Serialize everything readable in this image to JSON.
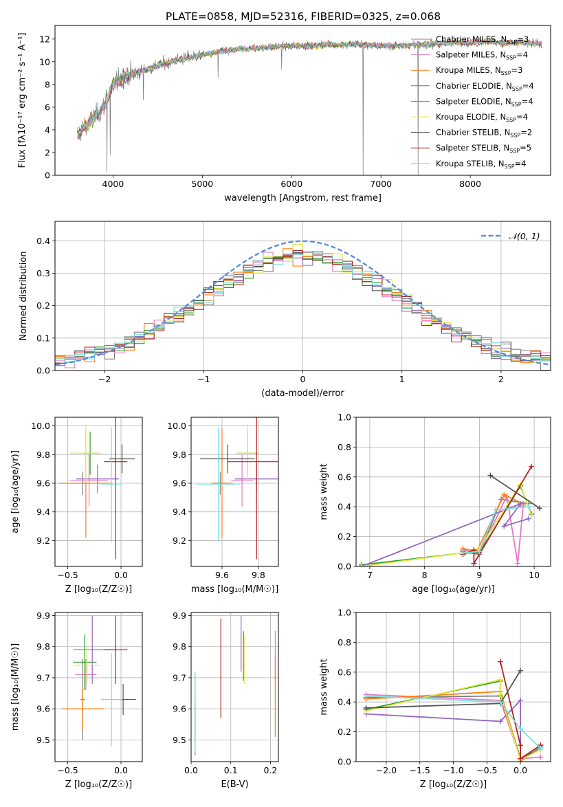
{
  "figure": {
    "title": "PLATE=0858, MJD=52316, FIBERID=0325, z=0.068"
  },
  "models": [
    {
      "name": "Chabrier MILES",
      "nssp": "3",
      "color": "#808080"
    },
    {
      "name": "Salpeter MILES",
      "nssp": "4",
      "color": "#e377c2"
    },
    {
      "name": "Kroupa MILES",
      "nssp": "3",
      "color": "#ff7f0e"
    },
    {
      "name": "Chabrier ELODIE",
      "nssp": "4",
      "color": "#2ca02c"
    },
    {
      "name": "Salpeter ELODIE",
      "nssp": "4",
      "color": "#9467bd"
    },
    {
      "name": "Kroupa ELODIE",
      "nssp": "4",
      "color": "#e8e84a"
    },
    {
      "name": "Chabrier STELIB",
      "nssp": "2",
      "color": "#555555"
    },
    {
      "name": "Salpeter STELIB",
      "nssp": "5",
      "color": "#b22222"
    },
    {
      "name": "Kroupa STELIB",
      "nssp": "4",
      "color": "#7fdcdc"
    }
  ],
  "chart_data": [
    {
      "id": "spectrum",
      "type": "line",
      "xlabel": "wavelength [Angstrom, rest frame]",
      "ylabel": "Flux [fλ10⁻¹⁷ erg cm⁻² s⁻¹ A⁻¹]",
      "xlim": [
        3350,
        8900
      ],
      "ylim": [
        0,
        13.2
      ],
      "xticks": [
        4000,
        5000,
        6000,
        7000,
        8000
      ],
      "yticks": [
        0,
        2,
        4,
        6,
        8,
        10,
        12
      ],
      "continuum": {
        "x": [
          3600,
          3700,
          3800,
          3900,
          4000,
          4100,
          4200,
          4300,
          4400,
          4600,
          4800,
          5000,
          5200,
          5400,
          5600,
          5800,
          6000,
          6200,
          6400,
          6600,
          6800,
          7000,
          7200,
          7400,
          7600,
          7800,
          8000,
          8200,
          8400,
          8600,
          8800
        ],
        "y": [
          3.6,
          4.4,
          5.2,
          6.0,
          8.0,
          8.6,
          8.9,
          9.1,
          9.4,
          9.9,
          10.3,
          10.6,
          10.9,
          11.1,
          11.2,
          11.3,
          11.4,
          11.4,
          11.5,
          11.5,
          11.5,
          11.4,
          11.4,
          11.5,
          11.6,
          11.7,
          11.7,
          11.8,
          11.6,
          11.7,
          11.6
        ]
      },
      "absorption_lines": [
        {
          "x": 3934,
          "y": 0.3
        },
        {
          "x": 3969,
          "y": 1.8
        },
        {
          "x": 4340,
          "y": 6.6
        },
        {
          "x": 5176,
          "y": 8.6
        },
        {
          "x": 5890,
          "y": 9.3
        },
        {
          "x": 6800,
          "y": 0.0
        },
        {
          "x": 7415,
          "y": 0.0
        }
      ]
    },
    {
      "id": "residuals",
      "type": "step",
      "xlabel": "(data-model)/error",
      "ylabel": "Normed distribution",
      "xlim": [
        -2.5,
        2.5
      ],
      "ylim": [
        0,
        0.46
      ],
      "xticks": [
        -2,
        -1,
        0,
        1,
        2
      ],
      "xticklabels": [
        "−2",
        "−1",
        "0",
        "1",
        "2"
      ],
      "yticks": [
        0.0,
        0.1,
        0.2,
        0.3,
        0.4
      ],
      "yticklabels": [
        "0.0",
        "0.1",
        "0.2",
        "0.3",
        "0.4"
      ],
      "gaussian_label": "𝒩(0, 1)",
      "gaussian_color": "#5a8fd6",
      "bins": 50
    },
    {
      "id": "age_vs_z",
      "type": "errorbar",
      "xlabel": "Z [log₁₀(Z/Z☉)]",
      "ylabel": "age  [log₁₀(age/yr)]",
      "xlim": [
        -0.62,
        0.2
      ],
      "ylim": [
        9.02,
        10.06
      ],
      "xticks": [
        -0.5,
        0.0
      ],
      "xticklabels": [
        "−0.5",
        "0.0"
      ],
      "yticks": [
        9.2,
        9.4,
        9.6,
        9.8,
        10.0
      ],
      "yticklabels": [
        "9.2",
        "9.4",
        "9.6",
        "9.8",
        "10.0"
      ],
      "points": [
        {
          "model": 0,
          "x": -0.36,
          "xerr": 0.02,
          "y": 9.6,
          "yerr": 0.08
        },
        {
          "model": 1,
          "x": -0.3,
          "xerr": 0.18,
          "y": 9.62,
          "yerr": 0.18
        },
        {
          "model": 2,
          "x": -0.33,
          "xerr": 0.25,
          "y": 9.6,
          "yerr": 0.38
        },
        {
          "model": 3,
          "x": -0.29,
          "xerr": 0.07,
          "y": 9.81,
          "yerr": 0.15
        },
        {
          "model": 4,
          "x": -0.22,
          "xerr": 0.2,
          "y": 9.63,
          "yerr": 0.1
        },
        {
          "model": 5,
          "x": -0.33,
          "xerr": 0.15,
          "y": 9.81,
          "yerr": 0.2
        },
        {
          "model": 6,
          "x": 0.01,
          "xerr": 0.12,
          "y": 9.77,
          "yerr": 0.1
        },
        {
          "model": 7,
          "x": -0.05,
          "xerr": 0.11,
          "y": 9.75,
          "yerr": 0.68
        },
        {
          "model": 8,
          "x": -0.09,
          "xerr": 0.1,
          "y": 9.59,
          "yerr": 0.4
        }
      ]
    },
    {
      "id": "age_vs_mass",
      "type": "errorbar",
      "xlabel": "mass [log₁₀(M/M☉)]",
      "ylabel": "",
      "xlim": [
        9.43,
        9.91
      ],
      "ylim": [
        9.02,
        10.06
      ],
      "xticks": [
        9.6,
        9.8
      ],
      "xticklabels": [
        "9.6",
        "9.8"
      ],
      "yticks": [
        9.2,
        9.4,
        9.6,
        9.8,
        10.0
      ],
      "yticklabels": [
        "9.2",
        "9.4",
        "9.6",
        "9.8",
        "10.0"
      ],
      "points": [
        {
          "model": 0,
          "x": 9.59,
          "xerr": 0.04,
          "y": 9.6,
          "yerr": 0.08
        },
        {
          "model": 1,
          "x": 9.71,
          "xerr": 0.06,
          "y": 9.62,
          "yerr": 0.18
        },
        {
          "model": 2,
          "x": 9.6,
          "xerr": 0.06,
          "y": 9.6,
          "yerr": 0.38
        },
        {
          "model": 3,
          "x": 9.74,
          "xerr": 0.06,
          "y": 9.81,
          "yerr": 0.15
        },
        {
          "model": 4,
          "x": 9.79,
          "xerr": 0.12,
          "y": 9.63,
          "yerr": 0.1
        },
        {
          "model": 5,
          "x": 9.74,
          "xerr": 0.06,
          "y": 9.81,
          "yerr": 0.2
        },
        {
          "model": 6,
          "x": 9.63,
          "xerr": 0.15,
          "y": 9.77,
          "yerr": 0.1
        },
        {
          "model": 7,
          "x": 9.79,
          "xerr": 0.16,
          "y": 9.75,
          "yerr": 0.68
        },
        {
          "model": 8,
          "x": 9.58,
          "xerr": 0.12,
          "y": 9.59,
          "yerr": 0.4
        }
      ]
    },
    {
      "id": "weight_vs_age",
      "type": "line",
      "xlabel": "age  [log₁₀(age/yr)]",
      "ylabel": "mass weight",
      "xlim": [
        6.75,
        10.3
      ],
      "ylim": [
        0,
        1
      ],
      "xticks": [
        7,
        8,
        9,
        10
      ],
      "xticklabels": [
        "7",
        "8",
        "9",
        "10"
      ],
      "yticks": [
        0.0,
        0.2,
        0.4,
        0.6,
        0.8,
        1.0
      ],
      "yticklabels": [
        "0.0",
        "0.2",
        "0.4",
        "0.6",
        "0.8",
        "1.0"
      ],
      "series": [
        {
          "model": 0,
          "x": [
            8.7,
            9.0,
            9.4,
            9.9
          ],
          "y": [
            0.1,
            0.08,
            0.45,
            0.42
          ]
        },
        {
          "model": 1,
          "x": [
            8.7,
            9.0,
            9.5,
            9.7,
            9.8
          ],
          "y": [
            0.11,
            0.09,
            0.47,
            0.02,
            0.41
          ]
        },
        {
          "model": 2,
          "x": [
            8.7,
            8.95,
            9.45,
            9.8
          ],
          "y": [
            0.12,
            0.1,
            0.48,
            0.42
          ]
        },
        {
          "model": 3,
          "x": [
            6.85,
            8.7,
            9.0,
            9.75,
            9.95
          ],
          "y": [
            0.01,
            0.09,
            0.09,
            0.54,
            0.35
          ]
        },
        {
          "model": 4,
          "x": [
            6.85,
            9.75,
            9.45,
            9.9
          ],
          "y": [
            0.0,
            0.42,
            0.27,
            0.32
          ]
        },
        {
          "model": 5,
          "x": [
            6.85,
            8.7,
            9.0,
            9.75,
            9.95
          ],
          "y": [
            0.0,
            0.09,
            0.12,
            0.55,
            0.34
          ]
        },
        {
          "model": 6,
          "x": [
            9.2,
            10.1
          ],
          "y": [
            0.61,
            0.39
          ]
        },
        {
          "model": 7,
          "x": [
            8.7,
            8.9,
            8.9,
            9.95
          ],
          "y": [
            0.08,
            0.11,
            0.02,
            0.67
          ]
        },
        {
          "model": 8,
          "x": [
            8.7,
            9.0,
            9.3,
            9.9
          ],
          "y": [
            0.09,
            0.1,
            0.38,
            0.4
          ]
        }
      ]
    },
    {
      "id": "mass_vs_z",
      "type": "errorbar",
      "xlabel": "Z [log₁₀(Z/Z☉)]",
      "ylabel": "mass [log₁₀(M/M☉)]",
      "xlim": [
        -0.62,
        0.2
      ],
      "ylim": [
        9.43,
        9.91
      ],
      "xticks": [
        -0.5,
        0.0
      ],
      "xticklabels": [
        "−0.5",
        "0.0"
      ],
      "yticks": [
        9.5,
        9.6,
        9.7,
        9.8,
        9.9
      ],
      "yticklabels": [
        "9.5",
        "9.6",
        "9.7",
        "9.8",
        "9.9"
      ],
      "points": [
        {
          "model": 0,
          "x": -0.36,
          "xerr": 0.02,
          "y": 9.63,
          "yerr": 0.13
        },
        {
          "model": 1,
          "x": -0.33,
          "xerr": 0.1,
          "y": 9.71,
          "yerr": 0.05
        },
        {
          "model": 2,
          "x": -0.36,
          "xerr": 0.2,
          "y": 9.6,
          "yerr": 0.07
        },
        {
          "model": 3,
          "x": -0.34,
          "xerr": 0.11,
          "y": 9.75,
          "yerr": 0.09
        },
        {
          "model": 4,
          "x": -0.27,
          "xerr": 0.18,
          "y": 9.79,
          "yerr": 0.11
        },
        {
          "model": 5,
          "x": -0.32,
          "xerr": 0.12,
          "y": 9.74,
          "yerr": 0.06
        },
        {
          "model": 6,
          "x": 0.02,
          "xerr": 0.12,
          "y": 9.63,
          "yerr": 0.05
        },
        {
          "model": 7,
          "x": -0.05,
          "xerr": 0.11,
          "y": 9.79,
          "yerr": 0.11
        },
        {
          "model": 8,
          "x": -0.09,
          "xerr": 0.1,
          "y": 9.63,
          "yerr": 0.15
        }
      ]
    },
    {
      "id": "mass_vs_ebv",
      "type": "errorbar",
      "xlabel": "E(B-V)",
      "ylabel": "",
      "xlim": [
        0.0,
        0.22
      ],
      "ylim": [
        9.43,
        9.91
      ],
      "xticks": [
        0.0,
        0.1,
        0.2
      ],
      "xticklabels": [
        "0.0",
        "0.1",
        "0.2"
      ],
      "yticks": [
        9.5,
        9.6,
        9.7,
        9.8,
        9.9
      ],
      "yticklabels": [
        "9.5",
        "9.6",
        "9.7",
        "9.8",
        "9.9"
      ],
      "points": [
        {
          "model": 0,
          "x": 0.01,
          "xerr": 0,
          "y": 9.58,
          "yerr": 0.13
        },
        {
          "model": 1,
          "x": 0.212,
          "xerr": 0,
          "y": 9.77,
          "yerr": 0.08
        },
        {
          "model": 2,
          "x": 0.212,
          "xerr": 0,
          "y": 9.64,
          "yerr": 0.13
        },
        {
          "model": 3,
          "x": 0.132,
          "xerr": 0,
          "y": 9.77,
          "yerr": 0.08
        },
        {
          "model": 4,
          "x": 0.126,
          "xerr": 0,
          "y": 9.81,
          "yerr": 0.09
        },
        {
          "model": 5,
          "x": 0.135,
          "xerr": 0,
          "y": 9.76,
          "yerr": 0.08
        },
        {
          "model": 6,
          "x": 0.01,
          "xerr": 0,
          "y": 9.56,
          "yerr": 0.06
        },
        {
          "model": 7,
          "x": 0.075,
          "xerr": 0,
          "y": 9.73,
          "yerr": 0.16
        },
        {
          "model": 8,
          "x": 0.01,
          "xerr": 0,
          "y": 9.59,
          "yerr": 0.13
        }
      ]
    },
    {
      "id": "weight_vs_z",
      "type": "line",
      "xlabel": "Z [log₁₀(Z/Z☉)]",
      "ylabel": "mass weight",
      "xlim": [
        -2.45,
        0.45
      ],
      "ylim": [
        0,
        1
      ],
      "xticks": [
        -2.0,
        -1.5,
        -1.0,
        -0.5,
        0.0
      ],
      "xticklabels": [
        "−2.0",
        "−1.5",
        "−1.0",
        "−0.5",
        "0.0"
      ],
      "yticks": [
        0.0,
        0.2,
        0.4,
        0.6,
        0.8,
        1.0
      ],
      "yticklabels": [
        "0.0",
        "0.2",
        "0.4",
        "0.6",
        "0.8",
        "1.0"
      ],
      "series": [
        {
          "model": 0,
          "x": [
            -2.3,
            -0.3,
            0.0,
            0.3
          ],
          "y": [
            0.43,
            0.44,
            0.02,
            0.09
          ]
        },
        {
          "model": 1,
          "x": [
            -2.3,
            -0.3,
            0.0,
            0.3
          ],
          "y": [
            0.45,
            0.41,
            0.02,
            0.03
          ]
        },
        {
          "model": 2,
          "x": [
            -2.3,
            -0.3,
            0.0,
            0.3
          ],
          "y": [
            0.42,
            0.47,
            0.02,
            0.11
          ]
        },
        {
          "model": 3,
          "x": [
            -2.3,
            -0.3,
            -0.3,
            0.0,
            0.3
          ],
          "y": [
            0.35,
            0.54,
            0.44,
            0.02,
            0.09
          ]
        },
        {
          "model": 4,
          "x": [
            -2.3,
            -0.3,
            0.0,
            0.0,
            0.3
          ],
          "y": [
            0.32,
            0.27,
            0.41,
            0.0,
            0.1
          ]
        },
        {
          "model": 5,
          "x": [
            -2.3,
            -0.3,
            -0.3,
            0.0,
            0.3
          ],
          "y": [
            0.34,
            0.55,
            0.45,
            0.01,
            0.08
          ]
        },
        {
          "model": 6,
          "x": [
            -2.3,
            -0.3,
            0.0
          ],
          "y": [
            0.36,
            0.39,
            0.61
          ]
        },
        {
          "model": 7,
          "x": [
            -0.3,
            0.0,
            0.0,
            0.3
          ],
          "y": [
            0.67,
            0.11,
            0.02,
            0.11
          ]
        },
        {
          "model": 8,
          "x": [
            -2.3,
            -0.3,
            0.0,
            0.3
          ],
          "y": [
            0.44,
            0.4,
            0.22,
            0.09
          ]
        }
      ]
    }
  ]
}
